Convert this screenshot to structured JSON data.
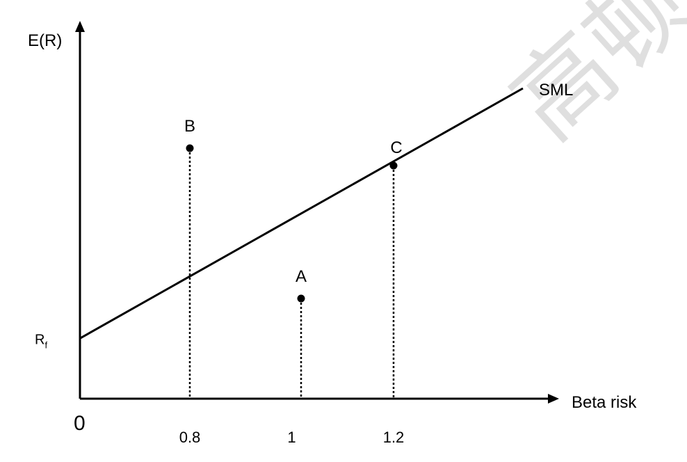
{
  "chart_data": {
    "type": "line",
    "title": "",
    "xlabel": "Beta risk",
    "ylabel": "E(R)",
    "origin_label": "0",
    "xlim": [
      0,
      2.0
    ],
    "ylim": [
      0,
      10
    ],
    "x_ticks": [
      {
        "value": 0.8,
        "label": "0.8"
      },
      {
        "value": 1.0,
        "label": "1"
      },
      {
        "value": 1.2,
        "label": "1.2"
      }
    ],
    "y_marker": {
      "label": "R",
      "subscript": "f",
      "value": 1.7
    },
    "series": [
      {
        "name": "SML",
        "points": [
          [
            0,
            1.7
          ],
          [
            1.6,
            9.8
          ]
        ]
      }
    ],
    "points": [
      {
        "name": "B",
        "x": 0.8,
        "y": 7.6
      },
      {
        "name": "A",
        "x": 1.0,
        "y": 3.0
      },
      {
        "name": "C",
        "x": 1.2,
        "y": 7.1
      }
    ]
  },
  "watermark_text": "高顿"
}
